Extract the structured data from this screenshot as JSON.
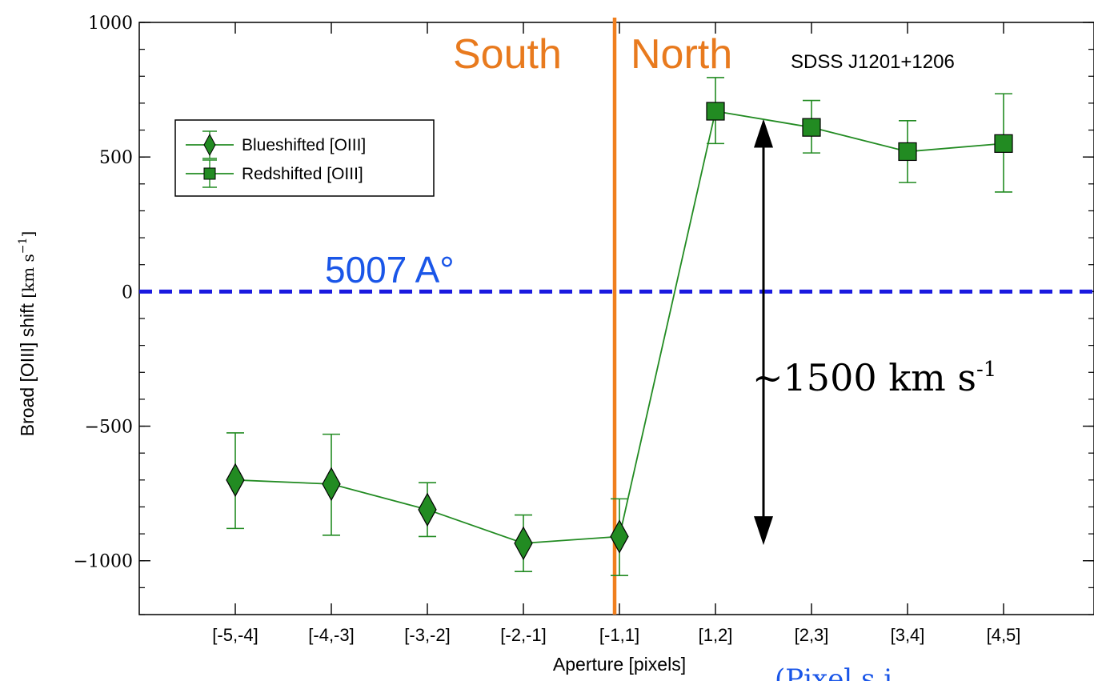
{
  "chart_data": {
    "type": "scatter",
    "title": "",
    "xlabel": "Aperture [pixels]",
    "ylabel": "Broad [OIII] shift",
    "ylabel_unit": "km s",
    "ylabel_unit_sup": "−1",
    "ylim": [
      -1200,
      1000
    ],
    "yticks": [
      1000,
      500,
      0,
      -500,
      -1000
    ],
    "ytick_labels": [
      "1000",
      "500",
      "0",
      "−500",
      "−1000"
    ],
    "categories": [
      "[-5,-4]",
      "[-4,-3]",
      "[-3,-2]",
      "[-2,-1]",
      "[-1,1]",
      "[1,2]",
      "[2,3]",
      "[3,4]",
      "[4,5]"
    ],
    "grid": false,
    "legend_position": "upper-left",
    "series": [
      {
        "name": "Blueshifted [OIII]",
        "marker": "diamond",
        "color": "#228b22",
        "x_index": [
          0,
          1,
          2,
          3,
          4
        ],
        "values": [
          -700,
          -715,
          -810,
          -935,
          -910
        ],
        "err_low": [
          -880,
          -905,
          -910,
          -1040,
          -1055
        ],
        "err_high": [
          -525,
          -530,
          -710,
          -830,
          -770
        ]
      },
      {
        "name": "Redshifted [OIII]",
        "marker": "square",
        "color": "#228b22",
        "x_index": [
          5,
          6,
          7,
          8
        ],
        "values": [
          670,
          610,
          520,
          550
        ],
        "err_low": [
          550,
          515,
          405,
          370
        ],
        "err_high": [
          795,
          710,
          635,
          735
        ]
      }
    ],
    "annotations": {
      "region_left": "South",
      "region_right": "North",
      "object_name": "SDSS J1201+1206",
      "reference_line_label": "5007 A°",
      "reference_line_value": 0,
      "delta_label": "~1500 km s",
      "delta_label_sup": "-1",
      "delta_from": 600,
      "delta_to": -900,
      "bottom_text": "(Pixel s i",
      "divider_category_index": 4
    },
    "colors": {
      "series": "#228b22",
      "divider": "#f07f1e",
      "reference_line": "#1a1ae0",
      "region_text": "#e87a1e",
      "reference_text": "#1a56e8"
    }
  }
}
